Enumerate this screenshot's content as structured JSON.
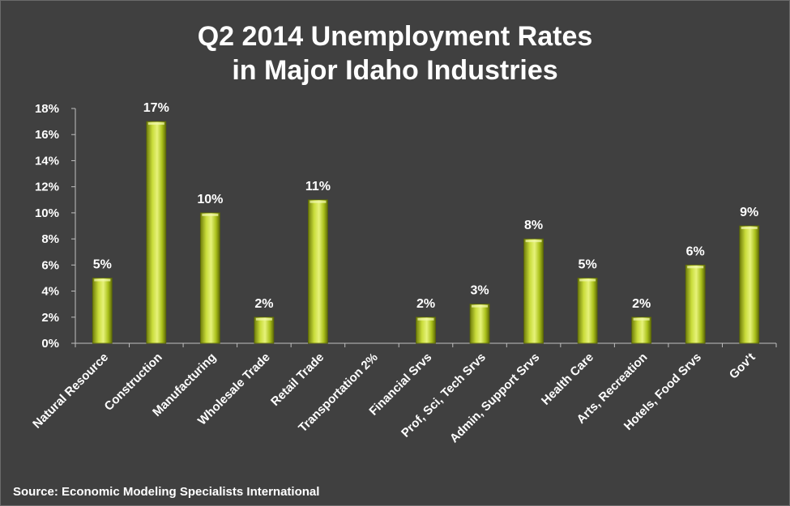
{
  "chart_data": {
    "type": "bar",
    "title": [
      "Q2 2014 Unemployment Rates",
      "in Major Idaho Industries"
    ],
    "categories": [
      "Natural Resource",
      "Construction",
      "Manufacturing",
      "Wholesale Trade",
      "Retail Trade",
      "Transportation 2%",
      "Financial Srvs",
      "Prof, Sci, Tech Srvs",
      "Admin, Support Srvs",
      "Health Care",
      "Arts, Recreation",
      "Hotels, Food Srvs",
      "Gov't"
    ],
    "values": [
      5,
      17,
      10,
      2,
      11,
      null,
      2,
      3,
      8,
      5,
      2,
      6,
      9
    ],
    "data_labels": [
      "5%",
      "17%",
      "10%",
      "2%",
      "11%",
      "",
      "2%",
      "3%",
      "8%",
      "5%",
      "2%",
      "6%",
      "9%"
    ],
    "y_ticks": [
      "0%",
      "2%",
      "4%",
      "6%",
      "8%",
      "10%",
      "12%",
      "14%",
      "16%",
      "18%"
    ],
    "ylim": [
      0,
      18
    ],
    "xlabel": "",
    "ylabel": "",
    "grid": false,
    "legend": "none",
    "colors": {
      "background": "#404040",
      "bar_light": "#e6f27a",
      "bar_mid": "#b7cc1e",
      "bar_dark": "#6f7d0a",
      "axis": "#bfbfbf",
      "text": "#ffffff"
    }
  },
  "source": "Source: Economic Modeling Specialists International"
}
